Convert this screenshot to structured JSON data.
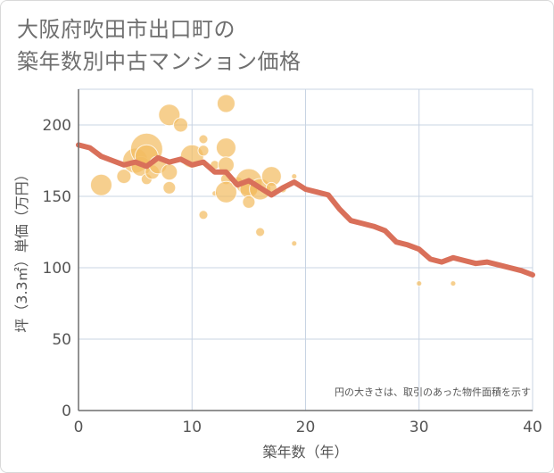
{
  "title": {
    "line1": "大阪府吹田市出口町の",
    "line2": "築年数別中古マンション価格"
  },
  "chart_data": {
    "type": "scatter",
    "xlabel": "築年数（年）",
    "ylabel": "坪（3.3㎡）単価（万円）",
    "xlim": [
      0,
      40
    ],
    "ylim": [
      0,
      225
    ],
    "x_ticks": [
      0,
      10,
      20,
      30,
      40
    ],
    "y_ticks": [
      0,
      50,
      100,
      150,
      200
    ],
    "grid": true,
    "note": "円の大きさは、取引のあった物件面積を示す",
    "colors": {
      "bubble": "#f2bd63",
      "line": "#d9705a",
      "grid": "#c8d4e3",
      "axis": "#6f6f6f"
    },
    "bubbles": [
      {
        "x": 2,
        "y": 158,
        "size": 12
      },
      {
        "x": 4,
        "y": 164,
        "size": 8
      },
      {
        "x": 5,
        "y": 175,
        "size": 14
      },
      {
        "x": 5.5,
        "y": 171,
        "size": 11
      },
      {
        "x": 6,
        "y": 183,
        "size": 18
      },
      {
        "x": 6,
        "y": 178,
        "size": 13
      },
      {
        "x": 6,
        "y": 162,
        "size": 6
      },
      {
        "x": 6.5,
        "y": 167,
        "size": 8
      },
      {
        "x": 7,
        "y": 172,
        "size": 10
      },
      {
        "x": 8,
        "y": 207,
        "size": 12
      },
      {
        "x": 8,
        "y": 167,
        "size": 9
      },
      {
        "x": 8,
        "y": 156,
        "size": 7
      },
      {
        "x": 9,
        "y": 200,
        "size": 8
      },
      {
        "x": 10,
        "y": 178,
        "size": 13
      },
      {
        "x": 11,
        "y": 190,
        "size": 5
      },
      {
        "x": 11,
        "y": 182,
        "size": 6
      },
      {
        "x": 11,
        "y": 137,
        "size": 5
      },
      {
        "x": 12,
        "y": 152,
        "size": 3
      },
      {
        "x": 12,
        "y": 172,
        "size": 5
      },
      {
        "x": 13,
        "y": 215,
        "size": 10
      },
      {
        "x": 13,
        "y": 184,
        "size": 11
      },
      {
        "x": 13,
        "y": 172,
        "size": 9
      },
      {
        "x": 13,
        "y": 162,
        "size": 6
      },
      {
        "x": 13,
        "y": 153,
        "size": 12
      },
      {
        "x": 14,
        "y": 160,
        "size": 6
      },
      {
        "x": 15,
        "y": 160,
        "size": 15
      },
      {
        "x": 15,
        "y": 155,
        "size": 10
      },
      {
        "x": 15,
        "y": 146,
        "size": 7
      },
      {
        "x": 16,
        "y": 155,
        "size": 12
      },
      {
        "x": 16,
        "y": 125,
        "size": 5
      },
      {
        "x": 17,
        "y": 164,
        "size": 11
      },
      {
        "x": 17,
        "y": 156,
        "size": 6
      },
      {
        "x": 18,
        "y": 155,
        "size": 4
      },
      {
        "x": 19,
        "y": 164,
        "size": 3
      },
      {
        "x": 19,
        "y": 117,
        "size": 3
      },
      {
        "x": 30,
        "y": 89,
        "size": 3
      },
      {
        "x": 33,
        "y": 89,
        "size": 3
      }
    ],
    "trend": {
      "x": [
        0,
        1,
        2,
        3,
        4,
        5,
        6,
        7,
        8,
        9,
        10,
        11,
        12,
        13,
        14,
        15,
        16,
        17,
        18,
        19,
        20,
        21,
        22,
        23,
        24,
        25,
        26,
        27,
        28,
        29,
        30,
        31,
        32,
        33,
        34,
        35,
        36,
        37,
        38,
        39,
        40
      ],
      "y": [
        186,
        184,
        178,
        175,
        172,
        174,
        171,
        177,
        174,
        176,
        172,
        174,
        167,
        167,
        158,
        161,
        156,
        151,
        156,
        160,
        155,
        153,
        151,
        141,
        133,
        131,
        129,
        126,
        118,
        116,
        113,
        106,
        104,
        107,
        105,
        103,
        104,
        102,
        100,
        98,
        95
      ]
    }
  }
}
